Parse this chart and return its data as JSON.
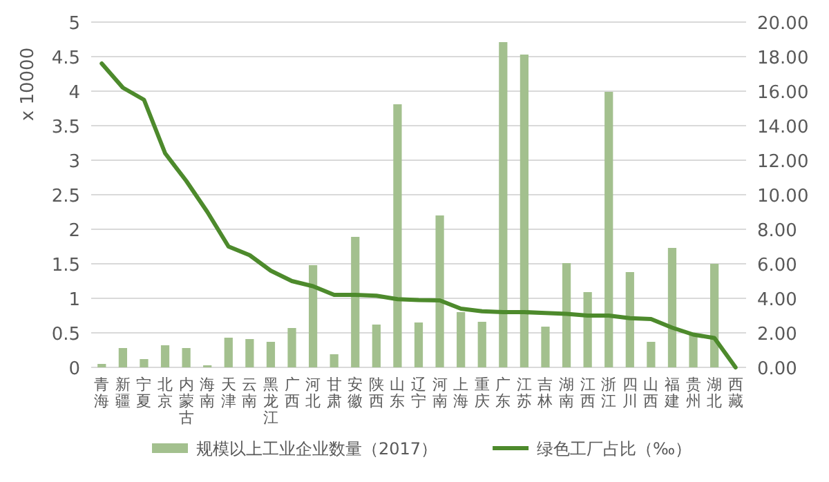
{
  "chart_data": {
    "type": "bar",
    "ylabel": "x 10000",
    "categories": [
      "青海",
      "新疆",
      "宁夏",
      "北京",
      "内蒙古",
      "海南",
      "天津",
      "云南",
      "黑龙江",
      "广西",
      "河北",
      "甘肃",
      "安徽",
      "陕西",
      "山东",
      "辽宁",
      "河南",
      "上海",
      "重庆",
      "广东",
      "江苏",
      "吉林",
      "湖南",
      "江西",
      "浙江",
      "四川",
      "山西",
      "福建",
      "贵州",
      "湖北",
      "西藏"
    ],
    "series": [
      {
        "name": "规模以上工业企业数量（2017）",
        "color": "#a3c08e",
        "values": [
          0.05,
          0.28,
          0.12,
          0.32,
          0.28,
          0.03,
          0.43,
          0.41,
          0.37,
          0.57,
          1.48,
          0.19,
          1.89,
          0.62,
          3.81,
          0.65,
          2.2,
          0.8,
          0.66,
          4.71,
          4.53,
          0.59,
          1.51,
          1.09,
          3.99,
          1.38,
          0.37,
          1.73,
          0.48,
          1.5,
          0
        ]
      },
      {
        "name": "绿色工厂占比（‰）",
        "type": "line",
        "axis": "y2",
        "color": "#4d8a2c",
        "values": [
          17.6,
          16.2,
          15.5,
          12.4,
          10.8,
          9.0,
          7.0,
          6.5,
          5.6,
          5.0,
          4.7,
          4.2,
          4.2,
          4.15,
          3.95,
          3.9,
          3.88,
          3.4,
          3.25,
          3.2,
          3.2,
          3.15,
          3.1,
          3.0,
          3.0,
          2.85,
          2.8,
          2.3,
          1.9,
          1.7,
          0
        ]
      }
    ],
    "ylim": [
      0,
      5
    ],
    "yticks": [
      0,
      0.5,
      1,
      1.5,
      2,
      2.5,
      3,
      3.5,
      4,
      4.5,
      5
    ],
    "y2lim": [
      0,
      20
    ],
    "y2ticks": [
      {
        "value": 0,
        "label": "0.00"
      },
      {
        "value": 2,
        "label": "2.00"
      },
      {
        "value": 4,
        "label": "4.00"
      },
      {
        "value": 6,
        "label": "6.00"
      },
      {
        "value": 8,
        "label": "8.00"
      },
      {
        "value": 10,
        "label": "10.00"
      },
      {
        "value": 12,
        "label": "12.00"
      },
      {
        "value": 14,
        "label": "14.00"
      },
      {
        "value": 16,
        "label": "16.00"
      },
      {
        "value": 18,
        "label": "18.00"
      },
      {
        "value": 20,
        "label": "20.00"
      }
    ],
    "grid": "y",
    "legend": "bottom"
  }
}
